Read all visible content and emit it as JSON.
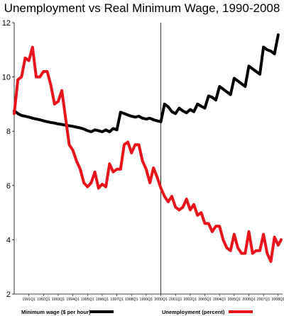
{
  "chart_data": {
    "type": "line",
    "title": "Unemployment vs Real Minimum Wage, 1990-2008",
    "ylim": [
      2,
      12
    ],
    "yticks": [
      2,
      4,
      6,
      8,
      10,
      12
    ],
    "grid": false,
    "legend_placement": "bottom",
    "x_tick_labels": [
      "1991Q1",
      "1992Q1",
      "1993Q1",
      "1994Q1",
      "1995Q1",
      "1996Q1",
      "1997Q1",
      "1998Q1",
      "1999Q1",
      "2000Q1",
      "2001Q1",
      "2002Q1",
      "2003Q1",
      "2004Q1",
      "2005Q1",
      "2006Q1",
      "2007Q1",
      "2008Q1"
    ],
    "vertical_marker": 2000.0,
    "series": [
      {
        "name": "Minimum wage ($ per hour)",
        "color": "#000000",
        "points": [
          [
            1990.0,
            8.75
          ],
          [
            1990.25,
            8.65
          ],
          [
            1990.5,
            8.58
          ],
          [
            1990.75,
            8.55
          ],
          [
            1991.0,
            8.52
          ],
          [
            1991.25,
            8.48
          ],
          [
            1991.5,
            8.45
          ],
          [
            1991.75,
            8.42
          ],
          [
            1992.0,
            8.38
          ],
          [
            1992.25,
            8.35
          ],
          [
            1992.5,
            8.32
          ],
          [
            1992.75,
            8.3
          ],
          [
            1993.0,
            8.27
          ],
          [
            1993.25,
            8.25
          ],
          [
            1993.5,
            8.22
          ],
          [
            1993.75,
            8.2
          ],
          [
            1994.0,
            8.18
          ],
          [
            1994.25,
            8.15
          ],
          [
            1994.5,
            8.12
          ],
          [
            1994.75,
            8.08
          ],
          [
            1995.0,
            8.02
          ],
          [
            1995.25,
            7.98
          ],
          [
            1995.5,
            8.05
          ],
          [
            1995.75,
            8.02
          ],
          [
            1996.0,
            7.98
          ],
          [
            1996.25,
            8.05
          ],
          [
            1996.5,
            7.98
          ],
          [
            1996.75,
            8.1
          ],
          [
            1997.0,
            8.05
          ],
          [
            1997.25,
            8.7
          ],
          [
            1997.5,
            8.65
          ],
          [
            1997.75,
            8.6
          ],
          [
            1998.0,
            8.55
          ],
          [
            1998.25,
            8.52
          ],
          [
            1998.5,
            8.55
          ],
          [
            1998.75,
            8.48
          ],
          [
            1999.0,
            8.45
          ],
          [
            1999.25,
            8.48
          ],
          [
            1999.5,
            8.42
          ],
          [
            1999.75,
            8.38
          ],
          [
            2000.0,
            8.35
          ],
          [
            2000.25,
            9.0
          ],
          [
            2000.5,
            8.9
          ],
          [
            2000.75,
            8.72
          ],
          [
            2001.0,
            8.65
          ],
          [
            2001.25,
            8.85
          ],
          [
            2001.5,
            8.75
          ],
          [
            2001.75,
            8.68
          ],
          [
            2002.0,
            8.8
          ],
          [
            2002.25,
            8.72
          ],
          [
            2002.5,
            9.0
          ],
          [
            2002.75,
            8.92
          ],
          [
            2003.0,
            8.85
          ],
          [
            2003.25,
            9.3
          ],
          [
            2003.5,
            9.25
          ],
          [
            2003.75,
            9.15
          ],
          [
            2004.0,
            9.65
          ],
          [
            2004.25,
            9.55
          ],
          [
            2004.5,
            9.45
          ],
          [
            2004.75,
            9.35
          ],
          [
            2005.0,
            9.95
          ],
          [
            2005.25,
            9.85
          ],
          [
            2005.5,
            9.75
          ],
          [
            2005.75,
            9.65
          ],
          [
            2006.0,
            10.4
          ],
          [
            2006.25,
            10.3
          ],
          [
            2006.5,
            10.2
          ],
          [
            2006.75,
            10.1
          ],
          [
            2007.0,
            11.1
          ],
          [
            2007.25,
            11.0
          ],
          [
            2007.5,
            10.95
          ],
          [
            2007.75,
            10.85
          ],
          [
            2008.0,
            11.55
          ]
        ]
      },
      {
        "name": "Unemployment (percent)",
        "color": "#e8141b",
        "points": [
          [
            1990.0,
            8.65
          ],
          [
            1990.25,
            9.9
          ],
          [
            1990.5,
            10.0
          ],
          [
            1990.75,
            10.7
          ],
          [
            1991.0,
            10.6
          ],
          [
            1991.25,
            11.1
          ],
          [
            1991.5,
            10.0
          ],
          [
            1991.75,
            10.0
          ],
          [
            1992.0,
            10.2
          ],
          [
            1992.25,
            10.2
          ],
          [
            1992.5,
            9.7
          ],
          [
            1992.75,
            9.0
          ],
          [
            1993.0,
            9.1
          ],
          [
            1993.25,
            9.5
          ],
          [
            1993.5,
            8.5
          ],
          [
            1993.75,
            7.5
          ],
          [
            1994.0,
            7.3
          ],
          [
            1994.25,
            6.9
          ],
          [
            1994.5,
            6.6
          ],
          [
            1994.75,
            6.1
          ],
          [
            1995.0,
            5.95
          ],
          [
            1995.25,
            6.1
          ],
          [
            1995.5,
            6.5
          ],
          [
            1995.75,
            5.9
          ],
          [
            1996.0,
            6.05
          ],
          [
            1996.25,
            5.95
          ],
          [
            1996.5,
            6.8
          ],
          [
            1996.75,
            6.5
          ],
          [
            1997.0,
            6.6
          ],
          [
            1997.25,
            6.6
          ],
          [
            1997.5,
            7.5
          ],
          [
            1997.75,
            7.6
          ],
          [
            1998.0,
            7.2
          ],
          [
            1998.25,
            7.5
          ],
          [
            1998.5,
            7.5
          ],
          [
            1998.75,
            6.9
          ],
          [
            1999.0,
            6.6
          ],
          [
            1999.25,
            6.1
          ],
          [
            1999.5,
            6.65
          ],
          [
            1999.75,
            6.3
          ],
          [
            2000.0,
            5.9
          ],
          [
            2000.25,
            5.6
          ],
          [
            2000.5,
            5.4
          ],
          [
            2000.75,
            5.6
          ],
          [
            2001.0,
            5.2
          ],
          [
            2001.25,
            5.1
          ],
          [
            2001.5,
            5.2
          ],
          [
            2001.75,
            5.5
          ],
          [
            2002.0,
            5.1
          ],
          [
            2002.25,
            5.3
          ],
          [
            2002.5,
            4.9
          ],
          [
            2002.75,
            5.0
          ],
          [
            2003.0,
            4.6
          ],
          [
            2003.25,
            4.6
          ],
          [
            2003.5,
            4.3
          ],
          [
            2003.75,
            4.5
          ],
          [
            2004.0,
            4.5
          ],
          [
            2004.25,
            4.0
          ],
          [
            2004.5,
            3.7
          ],
          [
            2004.75,
            3.6
          ],
          [
            2005.0,
            4.2
          ],
          [
            2005.25,
            3.7
          ],
          [
            2005.5,
            3.5
          ],
          [
            2005.75,
            3.5
          ],
          [
            2006.0,
            4.3
          ],
          [
            2006.25,
            3.5
          ],
          [
            2006.5,
            3.6
          ],
          [
            2006.75,
            3.6
          ],
          [
            2007.0,
            4.2
          ],
          [
            2007.25,
            3.5
          ],
          [
            2007.5,
            3.2
          ],
          [
            2007.75,
            4.1
          ],
          [
            2008.0,
            3.8
          ],
          [
            2008.2,
            4.0
          ]
        ]
      }
    ]
  }
}
